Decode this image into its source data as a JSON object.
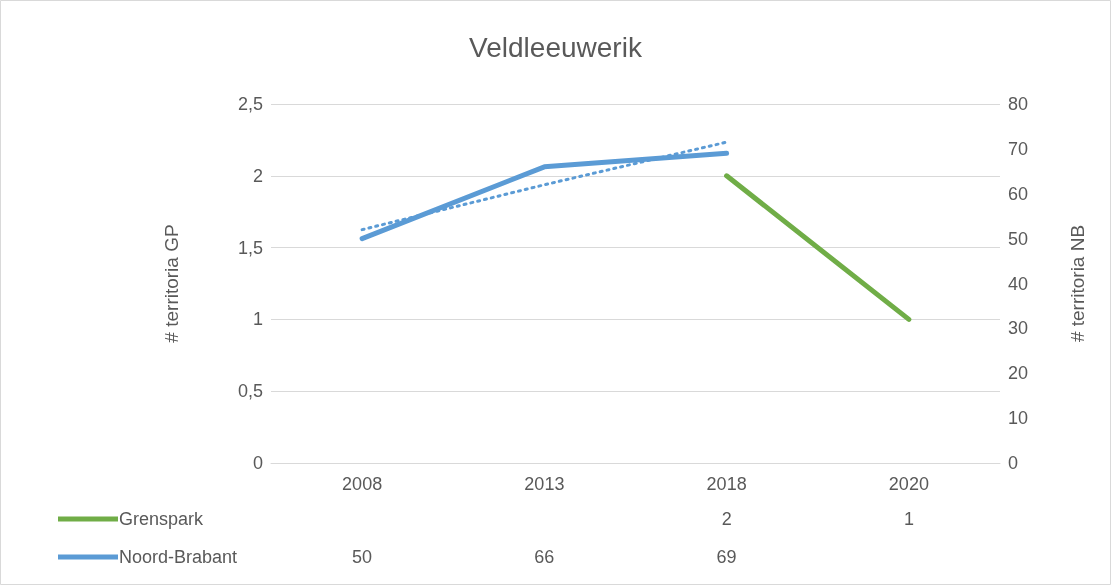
{
  "chart_data": {
    "type": "line",
    "title": "Veldleeuwerik",
    "ylabel": "# territoria GP",
    "y2label": "# territoria NB",
    "categories": [
      "2008",
      "2013",
      "2018",
      "2020"
    ],
    "series": [
      {
        "name": "Grenspark",
        "color": "#70ad47",
        "values": [
          null,
          null,
          2,
          1
        ],
        "value_labels": [
          null,
          null,
          "2",
          "1"
        ]
      },
      {
        "name": "Noord-Brabant",
        "color": "#5b9bd5",
        "values": [
          50,
          66,
          69,
          null
        ],
        "axis": "y2",
        "value_labels": [
          "50",
          "66",
          "69",
          null
        ]
      },
      {
        "color": "#5b9bd5",
        "values": [
          52,
          62,
          71.5,
          null
        ],
        "axis": "y2",
        "line_style": "dotted"
      }
    ],
    "ylim": [
      0,
      2.5
    ],
    "yticks": [
      0,
      {
        "value": 0.5,
        "label": "0,5"
      },
      1,
      {
        "value": 1.5,
        "label": "1,5"
      },
      2,
      {
        "value": 2.5,
        "label": "2,5"
      }
    ],
    "y2lim": [
      0,
      80
    ],
    "y2ticks": [
      0,
      10,
      20,
      30,
      40,
      50,
      60,
      70,
      80
    ],
    "grid": "y",
    "legend": "bottom",
    "marker": "none"
  }
}
